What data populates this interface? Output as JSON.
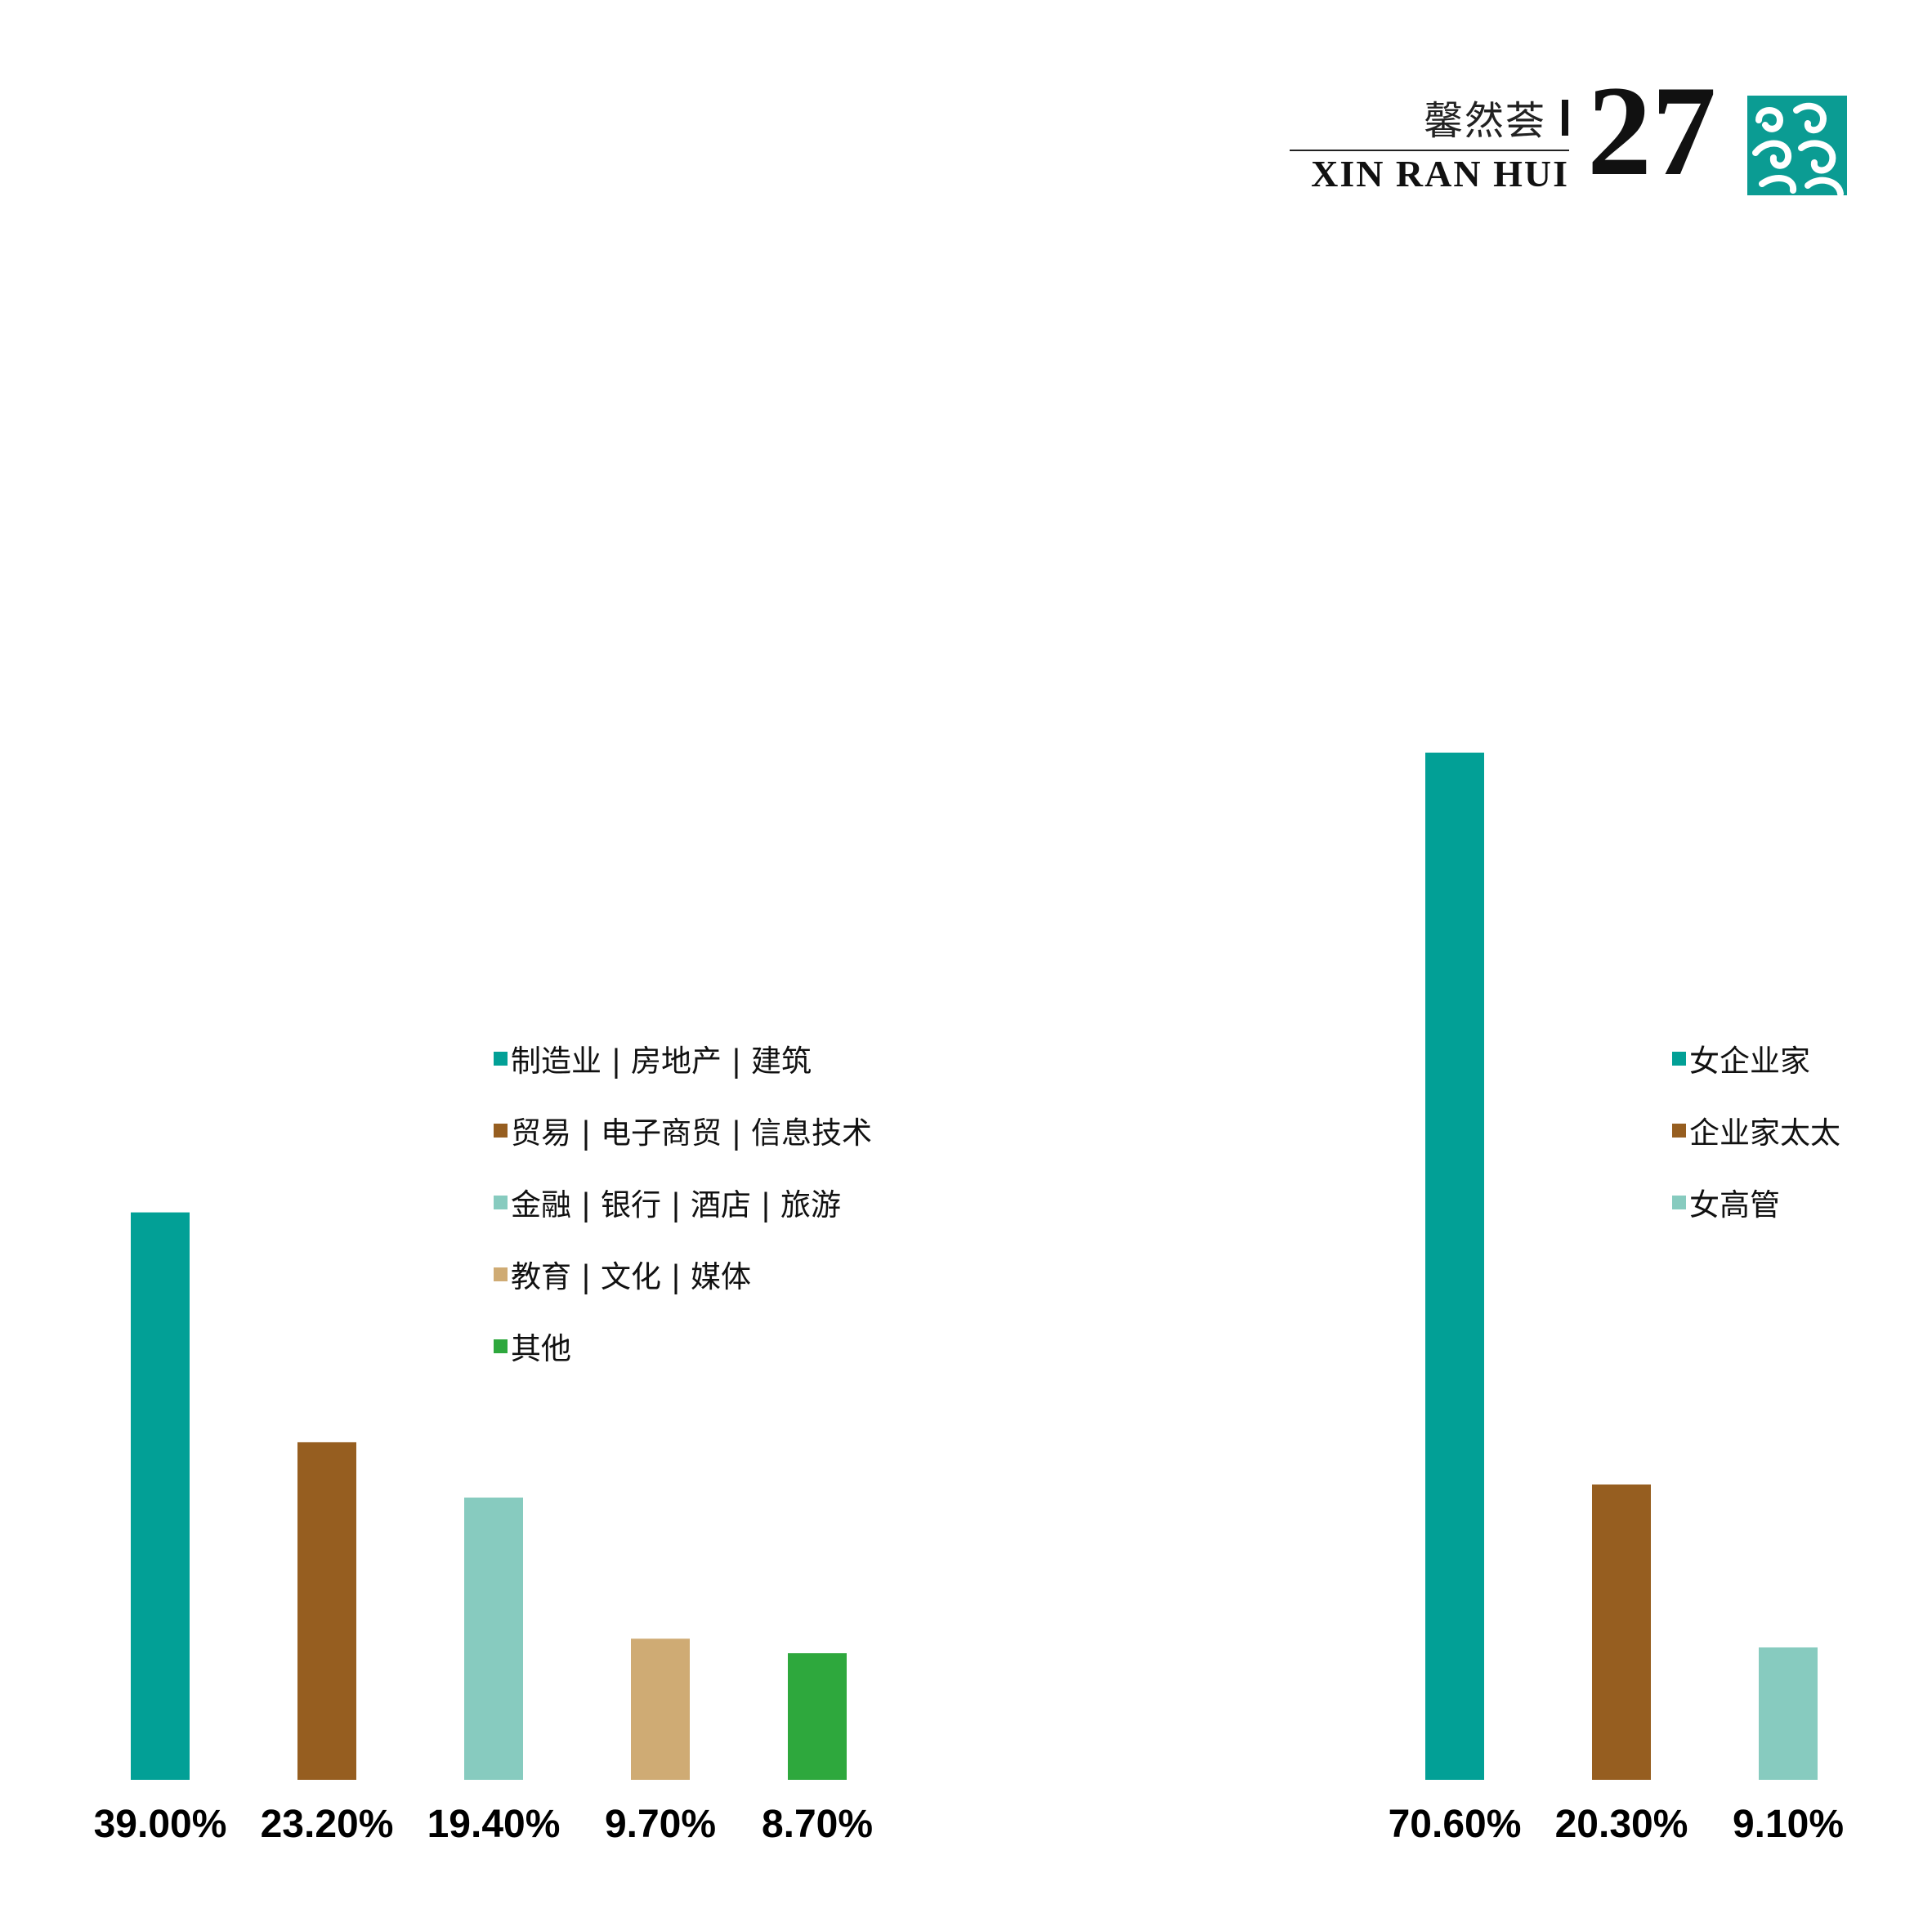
{
  "header": {
    "brand_cn": "馨然荟",
    "brand_en": "XIN RAN HUI",
    "page_number": "27",
    "colors": {
      "ornament": "#0b9c93",
      "text": "#111111"
    },
    "ornament_icon": "cloud-scroll-ornament"
  },
  "chart_data": [
    {
      "type": "bar",
      "categories": [
        "制造业 | 房地产 | 建筑",
        "贸易 | 电子商贸 | 信息技术",
        "金融 | 银行 | 酒店 | 旅游",
        "教育 | 文化 | 媒体",
        "其他"
      ],
      "values": [
        39.0,
        23.2,
        19.4,
        9.7,
        8.7
      ],
      "value_labels": [
        "39.00%",
        "23.20%",
        "19.40%",
        "9.70%",
        "8.70%"
      ],
      "colors": [
        "#02a096",
        "#965e20",
        "#87cbbf",
        "#cfab74",
        "#2ea83d"
      ],
      "title": "",
      "xlabel": "",
      "ylabel": "",
      "ylim": [
        0,
        70.6
      ],
      "grid": false,
      "legend": "top-right"
    },
    {
      "type": "bar",
      "categories": [
        "女企业家",
        "企业家太太",
        "女高管"
      ],
      "values": [
        70.6,
        20.3,
        9.1
      ],
      "value_labels": [
        "70.60%",
        "20.30%",
        "9.10%"
      ],
      "colors": [
        "#02a096",
        "#965e20",
        "#87cbbf"
      ],
      "title": "",
      "xlabel": "",
      "ylabel": "",
      "ylim": [
        0,
        70.6
      ],
      "grid": false,
      "legend": "top-right"
    }
  ]
}
